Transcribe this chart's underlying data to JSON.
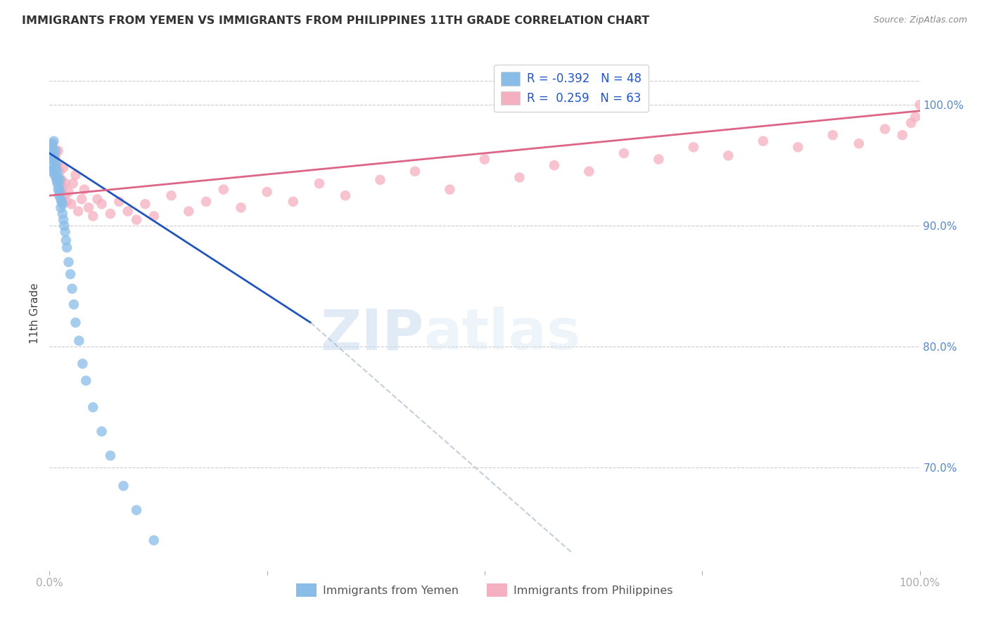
{
  "title": "IMMIGRANTS FROM YEMEN VS IMMIGRANTS FROM PHILIPPINES 11TH GRADE CORRELATION CHART",
  "source": "Source: ZipAtlas.com",
  "ylabel": "11th Grade",
  "ytick_labels": [
    "100.0%",
    "90.0%",
    "80.0%",
    "70.0%"
  ],
  "ytick_positions": [
    1.0,
    0.9,
    0.8,
    0.7
  ],
  "xlim": [
    0.0,
    1.0
  ],
  "ylim": [
    0.615,
    1.04
  ],
  "legend_r_yemen": "-0.392",
  "legend_n_yemen": "48",
  "legend_r_phil": "0.259",
  "legend_n_phil": "63",
  "color_yemen": "#89bde8",
  "color_phil": "#f4afc0",
  "color_line_yemen": "#2255bb",
  "color_line_phil": "#dd6688",
  "watermark_zip": "ZIP",
  "watermark_atlas": "atlas",
  "yemen_x": [
    0.001,
    0.002,
    0.003,
    0.003,
    0.004,
    0.004,
    0.005,
    0.005,
    0.005,
    0.006,
    0.006,
    0.007,
    0.007,
    0.008,
    0.008,
    0.008,
    0.009,
    0.009,
    0.01,
    0.01,
    0.011,
    0.011,
    0.012,
    0.012,
    0.013,
    0.013,
    0.014,
    0.015,
    0.015,
    0.016,
    0.017,
    0.018,
    0.019,
    0.02,
    0.022,
    0.024,
    0.026,
    0.028,
    0.03,
    0.034,
    0.038,
    0.042,
    0.05,
    0.06,
    0.07,
    0.085,
    0.1,
    0.12
  ],
  "yemen_y": [
    0.945,
    0.96,
    0.955,
    0.968,
    0.95,
    0.963,
    0.947,
    0.958,
    0.97,
    0.942,
    0.955,
    0.948,
    0.962,
    0.94,
    0.952,
    0.938,
    0.945,
    0.935,
    0.94,
    0.93,
    0.932,
    0.925,
    0.928,
    0.938,
    0.922,
    0.915,
    0.92,
    0.91,
    0.918,
    0.905,
    0.9,
    0.895,
    0.888,
    0.882,
    0.87,
    0.86,
    0.848,
    0.835,
    0.82,
    0.805,
    0.786,
    0.772,
    0.75,
    0.73,
    0.71,
    0.685,
    0.665,
    0.64
  ],
  "phil_x": [
    0.002,
    0.003,
    0.004,
    0.006,
    0.007,
    0.008,
    0.009,
    0.01,
    0.011,
    0.012,
    0.013,
    0.014,
    0.015,
    0.016,
    0.017,
    0.018,
    0.02,
    0.022,
    0.025,
    0.027,
    0.03,
    0.033,
    0.037,
    0.04,
    0.045,
    0.05,
    0.055,
    0.06,
    0.07,
    0.08,
    0.09,
    0.1,
    0.11,
    0.12,
    0.14,
    0.16,
    0.18,
    0.2,
    0.22,
    0.25,
    0.28,
    0.31,
    0.34,
    0.38,
    0.42,
    0.46,
    0.5,
    0.54,
    0.58,
    0.62,
    0.66,
    0.7,
    0.74,
    0.78,
    0.82,
    0.86,
    0.9,
    0.93,
    0.96,
    0.98,
    0.99,
    0.995,
    1.0
  ],
  "phil_y": [
    0.965,
    0.955,
    0.968,
    0.945,
    0.958,
    0.94,
    0.95,
    0.962,
    0.935,
    0.945,
    0.928,
    0.938,
    0.932,
    0.948,
    0.925,
    0.935,
    0.92,
    0.928,
    0.918,
    0.935,
    0.942,
    0.912,
    0.922,
    0.93,
    0.915,
    0.908,
    0.922,
    0.918,
    0.91,
    0.92,
    0.912,
    0.905,
    0.918,
    0.908,
    0.925,
    0.912,
    0.92,
    0.93,
    0.915,
    0.928,
    0.92,
    0.935,
    0.925,
    0.938,
    0.945,
    0.93,
    0.955,
    0.94,
    0.95,
    0.945,
    0.96,
    0.955,
    0.965,
    0.958,
    0.97,
    0.965,
    0.975,
    0.968,
    0.98,
    0.975,
    0.985,
    0.99,
    1.0
  ],
  "line_yemen_x0": 0.0,
  "line_yemen_x_solid_end": 0.3,
  "line_yemen_x1": 0.6,
  "line_phil_x0": 0.0,
  "line_phil_x1": 1.0,
  "line_yemen_y0": 0.96,
  "line_yemen_y_solid_end": 0.82,
  "line_yemen_y1": 0.63,
  "line_phil_y0": 0.925,
  "line_phil_y1": 0.995
}
